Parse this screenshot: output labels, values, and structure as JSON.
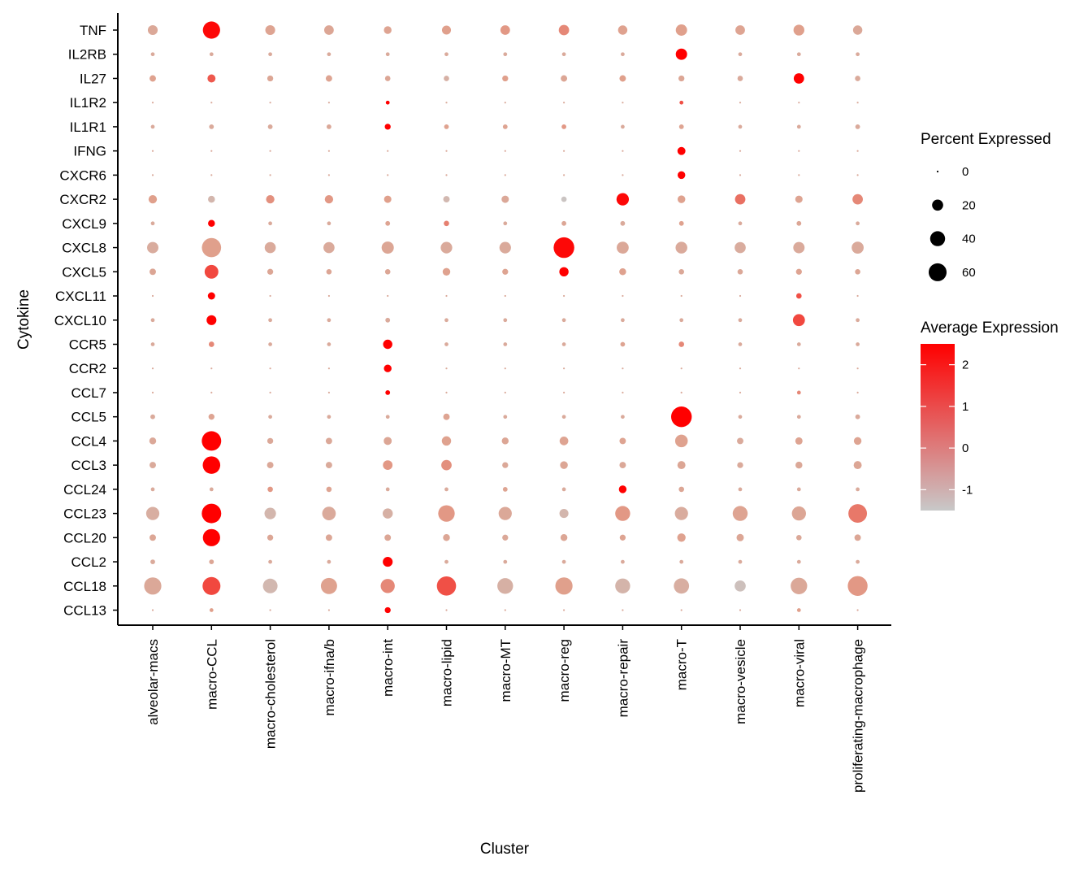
{
  "chart_data": {
    "type": "dotplot",
    "xlabel": "Cluster",
    "ylabel": "Cytokine",
    "clusters": [
      "alveolar-macs",
      "macro-CCL",
      "macro-cholesterol",
      "macro-ifna/b",
      "macro-int",
      "macro-lipid",
      "macro-MT",
      "macro-reg",
      "macro-repair",
      "macro-T",
      "macro-vesicle",
      "macro-viral",
      "proliferating-macrophage"
    ],
    "genes": [
      "TNF",
      "IL2RB",
      "IL27",
      "IL1R2",
      "IL1R1",
      "IFNG",
      "CXCR6",
      "CXCR2",
      "CXCL9",
      "CXCL8",
      "CXCL5",
      "CXCL11",
      "CXCL10",
      "CCR5",
      "CCR2",
      "CCL7",
      "CCL5",
      "CCL4",
      "CCL3",
      "CCL24",
      "CCL23",
      "CCL20",
      "CCL2",
      "CCL18",
      "CCL13"
    ],
    "pct_expressed": [
      [
        15,
        55,
        15,
        14,
        8,
        12,
        14,
        17,
        13,
        21,
        14,
        19,
        13
      ],
      [
        1,
        1,
        1,
        1,
        1,
        1,
        1,
        1,
        1,
        21,
        1,
        1,
        1
      ],
      [
        5,
        9,
        4,
        5,
        3,
        3,
        4,
        5,
        5,
        4,
        3,
        17,
        3
      ],
      [
        0,
        0,
        0,
        0,
        1,
        0,
        0,
        0,
        0,
        1,
        0,
        0,
        0
      ],
      [
        1,
        2,
        2,
        2,
        4,
        2,
        2,
        2,
        1,
        2,
        1,
        1,
        2
      ],
      [
        0,
        0,
        0,
        0,
        0,
        0,
        0,
        0,
        0,
        9,
        0,
        0,
        0
      ],
      [
        0,
        0,
        0,
        0,
        0,
        0,
        0,
        0,
        0,
        8,
        0,
        0,
        0
      ],
      [
        10,
        6,
        10,
        10,
        7,
        5,
        7,
        3,
        26,
        8,
        17,
        7,
        17
      ],
      [
        1,
        6,
        1,
        1,
        2,
        3,
        1,
        2,
        2,
        2,
        1,
        2,
        1
      ],
      [
        21,
        70,
        20,
        20,
        25,
        22,
        22,
        82,
        24,
        23,
        20,
        21,
        24
      ],
      [
        5,
        33,
        4,
        3,
        3,
        8,
        4,
        13,
        6,
        3,
        3,
        4,
        3
      ],
      [
        0,
        7,
        0,
        0,
        0,
        0,
        0,
        0,
        0,
        0,
        0,
        3,
        0
      ],
      [
        1,
        15,
        1,
        1,
        2,
        1,
        1,
        1,
        1,
        1,
        1,
        24,
        1
      ],
      [
        1,
        3,
        1,
        1,
        13,
        1,
        1,
        1,
        2,
        3,
        1,
        1,
        1
      ],
      [
        0,
        0,
        0,
        0,
        8,
        0,
        0,
        0,
        0,
        0,
        0,
        0,
        0
      ],
      [
        0,
        0,
        0,
        0,
        2,
        0,
        0,
        0,
        0,
        0,
        0,
        1,
        0
      ],
      [
        2,
        4,
        1,
        1,
        1,
        5,
        1,
        1,
        1,
        82,
        1,
        1,
        2
      ],
      [
        6,
        72,
        4,
        5,
        9,
        13,
        6,
        11,
        5,
        27,
        5,
        7,
        8
      ],
      [
        5,
        57,
        5,
        5,
        14,
        17,
        4,
        8,
        5,
        9,
        4,
        6,
        9
      ],
      [
        1,
        1,
        3,
        3,
        1,
        1,
        2,
        1,
        8,
        3,
        1,
        1,
        1
      ],
      [
        30,
        72,
        22,
        32,
        16,
        50,
        30,
        12,
        40,
        30,
        40,
        35,
        65
      ],
      [
        5,
        55,
        4,
        5,
        5,
        6,
        4,
        6,
        4,
        10,
        7,
        3,
        5
      ],
      [
        2,
        2,
        1,
        1,
        15,
        1,
        1,
        1,
        1,
        1,
        1,
        1,
        1
      ],
      [
        55,
        60,
        38,
        48,
        35,
        70,
        45,
        55,
        40,
        42,
        20,
        50,
        75
      ],
      [
        0,
        1,
        0,
        0,
        4,
        0,
        0,
        0,
        0,
        0,
        0,
        1,
        0
      ]
    ],
    "avg_expression": [
      [
        0.1,
        2.4,
        0.3,
        0.2,
        0.3,
        0.5,
        0.6,
        0.8,
        0.4,
        0.5,
        0.3,
        0.5,
        0.1
      ],
      [
        0,
        0,
        0,
        0,
        0,
        0,
        0,
        0,
        0,
        2.5,
        0,
        0,
        0
      ],
      [
        0.4,
        1.4,
        0.2,
        0.3,
        0.2,
        -0.3,
        0.5,
        0.2,
        0.5,
        0.2,
        0,
        2.5,
        0
      ],
      [
        0,
        0,
        0,
        0,
        2.5,
        0,
        0,
        0,
        0,
        1.5,
        0,
        0,
        0
      ],
      [
        0,
        0,
        0,
        0.1,
        2.5,
        0.4,
        0.3,
        0.6,
        0,
        0.3,
        0,
        0,
        0
      ],
      [
        0,
        0,
        0,
        0,
        0,
        0,
        0,
        0,
        0,
        2.5,
        0,
        0,
        0
      ],
      [
        0,
        0,
        0,
        0,
        0,
        0,
        0,
        0,
        0,
        2.5,
        0,
        0,
        0
      ],
      [
        0.5,
        -0.6,
        0.7,
        0.6,
        0.5,
        -0.7,
        0.1,
        -1.3,
        2.4,
        0.4,
        1.1,
        0.3,
        0.8
      ],
      [
        0,
        2.5,
        0,
        0,
        0.3,
        0.9,
        0,
        0.2,
        0,
        0.4,
        0,
        0.2,
        0
      ],
      [
        -0.1,
        0.5,
        0,
        0,
        0.2,
        0,
        0,
        2.4,
        0.1,
        0,
        -0.1,
        0,
        0
      ],
      [
        0.2,
        1.6,
        0.2,
        0.2,
        0.2,
        0.4,
        0.3,
        2.5,
        0.4,
        0.1,
        0.1,
        0.3,
        0.2
      ],
      [
        0,
        2.5,
        0,
        0,
        0,
        0,
        0,
        0,
        0,
        0,
        0,
        1.5,
        0
      ],
      [
        0,
        2.5,
        0,
        0,
        0,
        0,
        0,
        0,
        0,
        0,
        0,
        1.6,
        0
      ],
      [
        0,
        0.8,
        0,
        0,
        2.5,
        0,
        0,
        0,
        0.3,
        0.8,
        0,
        0,
        0
      ],
      [
        0,
        0,
        0,
        0,
        2.5,
        0,
        0,
        0,
        0,
        0,
        0,
        0,
        0
      ],
      [
        0,
        0,
        0,
        0,
        2.5,
        0,
        0,
        0,
        0,
        0,
        0,
        0.8,
        0
      ],
      [
        0,
        0.3,
        0,
        0,
        0,
        0.3,
        0,
        0,
        0,
        2.5,
        0,
        0,
        0
      ],
      [
        0.1,
        2.5,
        0.1,
        0.1,
        0.2,
        0.4,
        0.2,
        0.3,
        0.3,
        0.4,
        0,
        0.3,
        0.3
      ],
      [
        0,
        2.5,
        0.1,
        0,
        0.6,
        0.7,
        0.1,
        0.2,
        0.1,
        0.2,
        0,
        0.1,
        0.2
      ],
      [
        0,
        0,
        0.6,
        0.3,
        0,
        0,
        0.3,
        0,
        2.5,
        0.2,
        0,
        0,
        0
      ],
      [
        -0.2,
        2.5,
        -0.6,
        0,
        -0.3,
        0.6,
        0.1,
        -0.6,
        0.6,
        -0.1,
        0.3,
        0.2,
        1.0
      ],
      [
        0.2,
        2.5,
        0.2,
        0.2,
        0.2,
        0.2,
        0.1,
        0.2,
        0.3,
        0.4,
        0.2,
        0.1,
        0.2
      ],
      [
        0,
        0.2,
        0,
        0,
        2.5,
        0,
        0,
        0,
        0,
        0,
        0,
        0,
        0
      ],
      [
        0.1,
        1.6,
        -0.7,
        0.4,
        0.8,
        1.5,
        -0.3,
        0.5,
        -0.5,
        -0.2,
        -1.1,
        0.1,
        0.6
      ],
      [
        0,
        0.5,
        0,
        0,
        2.5,
        0,
        0,
        0,
        0,
        0,
        0,
        0.5,
        0
      ]
    ],
    "size_legend": {
      "title": "Percent Expressed",
      "values": [
        0,
        20,
        40,
        60
      ],
      "labels": [
        "0",
        "20",
        "40",
        "60"
      ]
    },
    "color_legend": {
      "title": "Average Expression",
      "ticks": [
        2,
        1,
        0,
        -1
      ],
      "labels": [
        "2",
        "1",
        "0",
        "-1"
      ],
      "range": [
        -1.5,
        2.5
      ],
      "low_color": "#C8C8C8",
      "high_color": "#FF0000"
    }
  }
}
